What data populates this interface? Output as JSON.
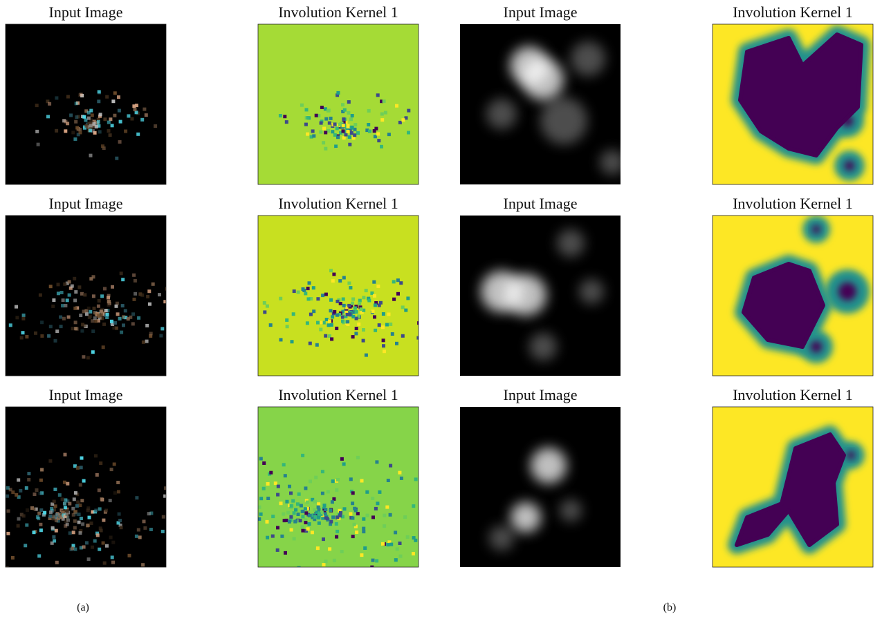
{
  "rows": [
    [
      "Input Image",
      "Involution Kernel 1",
      "Input Image",
      "Involution Kernel 1"
    ],
    [
      "Input Image",
      "Involution Kernel 1",
      "Input Image",
      "Involution Kernel 1"
    ],
    [
      "Input Image",
      "Involution Kernel 1",
      "Input Image",
      "Involution Kernel 1"
    ]
  ],
  "captions": [
    "(a)",
    "(b)"
  ]
}
